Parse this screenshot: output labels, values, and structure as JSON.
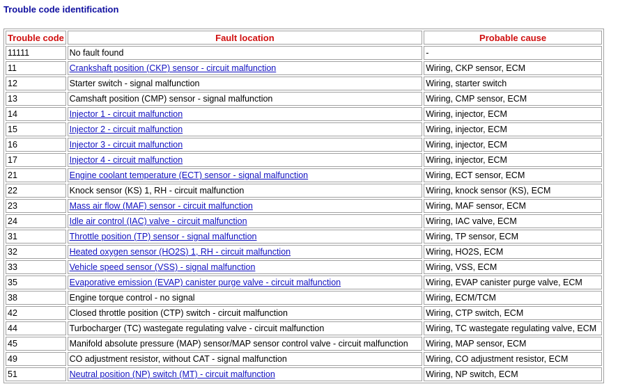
{
  "header": {
    "title": "Trouble code identification"
  },
  "table": {
    "columns": [
      "Trouble code",
      "Fault location",
      "Probable cause"
    ],
    "rows": [
      {
        "code": "11111",
        "location": "No fault found",
        "cause": "-",
        "link": false
      },
      {
        "code": "11",
        "location": "Crankshaft position (CKP) sensor - circuit malfunction",
        "cause": "Wiring, CKP sensor, ECM",
        "link": true
      },
      {
        "code": "12",
        "location": "Starter switch - signal malfunction",
        "cause": "Wiring, starter switch",
        "link": false
      },
      {
        "code": "13",
        "location": "Camshaft position (CMP) sensor - signal malfunction",
        "cause": "Wiring, CMP sensor, ECM",
        "link": false
      },
      {
        "code": "14",
        "location": "Injector 1 - circuit malfunction",
        "cause": "Wiring, injector, ECM",
        "link": true
      },
      {
        "code": "15",
        "location": "Injector 2 - circuit malfunction",
        "cause": "Wiring, injector, ECM",
        "link": true
      },
      {
        "code": "16",
        "location": "Injector 3 - circuit malfunction",
        "cause": "Wiring, injector, ECM",
        "link": true
      },
      {
        "code": "17",
        "location": "Injector 4 - circuit malfunction",
        "cause": "Wiring, injector, ECM",
        "link": true
      },
      {
        "code": "21",
        "location": "Engine coolant temperature (ECT) sensor - signal malfunction",
        "cause": "Wiring, ECT sensor, ECM",
        "link": true
      },
      {
        "code": "22",
        "location": "Knock sensor (KS) 1, RH - circuit malfunction",
        "cause": "Wiring, knock sensor (KS), ECM",
        "link": false
      },
      {
        "code": "23",
        "location": "Mass air flow (MAF) sensor - circuit malfunction",
        "cause": "Wiring, MAF sensor, ECM",
        "link": true
      },
      {
        "code": "24",
        "location": "Idle air control (IAC) valve - circuit malfunction",
        "cause": "Wiring, IAC valve, ECM",
        "link": true
      },
      {
        "code": "31",
        "location": "Throttle position (TP) sensor - signal malfunction",
        "cause": "Wiring, TP sensor, ECM",
        "link": true
      },
      {
        "code": "32",
        "location": "Heated oxygen sensor (HO2S) 1, RH - circuit malfunction",
        "cause": "Wiring, HO2S, ECM",
        "link": true
      },
      {
        "code": "33",
        "location": "Vehicle speed sensor (VSS) - signal malfunction",
        "cause": "Wiring, VSS, ECM",
        "link": true
      },
      {
        "code": "35",
        "location": "Evaporative emission (EVAP) canister purge valve - circuit malfunction",
        "cause": "Wiring, EVAP canister purge valve, ECM",
        "link": true
      },
      {
        "code": "38",
        "location": "Engine torque control - no signal",
        "cause": "Wiring, ECM/TCM",
        "link": false
      },
      {
        "code": "42",
        "location": "Closed throttle position (CTP) switch - circuit malfunction",
        "cause": "Wiring, CTP switch, ECM",
        "link": false
      },
      {
        "code": "44",
        "location": "Turbocharger (TC) wastegate regulating valve - circuit malfunction",
        "cause": "Wiring, TC wastegate regulating valve, ECM",
        "link": false
      },
      {
        "code": "45",
        "location": "Manifold absolute pressure (MAP) sensor/MAP sensor control valve - circuit malfunction",
        "cause": "Wiring, MAP sensor, ECM",
        "link": false
      },
      {
        "code": "49",
        "location": "CO adjustment resistor, without CAT - signal malfunction",
        "cause": "Wiring, CO adjustment resistor, ECM",
        "link": false
      },
      {
        "code": "51",
        "location": "Neutral position (NP) switch (MT) - circuit malfunction",
        "cause": "Wiring, NP switch, ECM",
        "link": true
      }
    ]
  }
}
